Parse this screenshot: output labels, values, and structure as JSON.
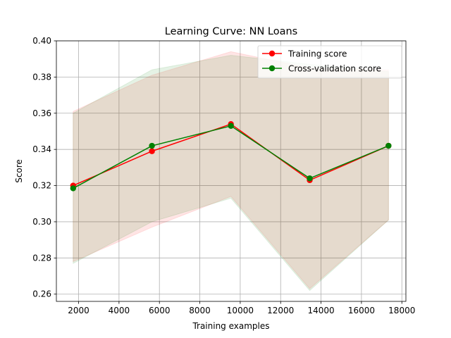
{
  "chart_data": {
    "type": "line",
    "title": "Learning Curve: NN Loans",
    "xlabel": "Training examples",
    "ylabel": "Score",
    "xlim": [
      900,
      18200
    ],
    "ylim": [
      0.256,
      0.4
    ],
    "x_ticks": [
      2000,
      4000,
      6000,
      8000,
      10000,
      12000,
      14000,
      16000,
      18000
    ],
    "x_tick_labels": [
      "2000",
      "4000",
      "6000",
      "8000",
      "10000",
      "12000",
      "14000",
      "16000",
      "18000"
    ],
    "y_ticks": [
      0.26,
      0.28,
      0.3,
      0.32,
      0.34,
      0.36,
      0.38,
      0.4
    ],
    "y_tick_labels": [
      "0.26",
      "0.28",
      "0.30",
      "0.32",
      "0.34",
      "0.36",
      "0.38",
      "0.40"
    ],
    "grid": true,
    "legend_position": "top-right",
    "x": [
      1730,
      5630,
      9540,
      13440,
      17340
    ],
    "series": [
      {
        "name": "Training score",
        "color": "#ff0000",
        "fill_color": "#ff0000",
        "values": [
          0.32,
          0.339,
          0.354,
          0.323,
          0.342
        ],
        "band_upper": [
          0.361,
          0.381,
          0.394,
          0.385,
          0.384
        ],
        "band_lower": [
          0.278,
          0.297,
          0.314,
          0.263,
          0.301
        ]
      },
      {
        "name": "Cross-validation score",
        "color": "#008000",
        "fill_color": "#008000",
        "values": [
          0.3185,
          0.342,
          0.353,
          0.324,
          0.342
        ],
        "band_upper": [
          0.36,
          0.384,
          0.392,
          0.387,
          0.383
        ],
        "band_lower": [
          0.277,
          0.3,
          0.313,
          0.262,
          0.301
        ]
      }
    ]
  }
}
